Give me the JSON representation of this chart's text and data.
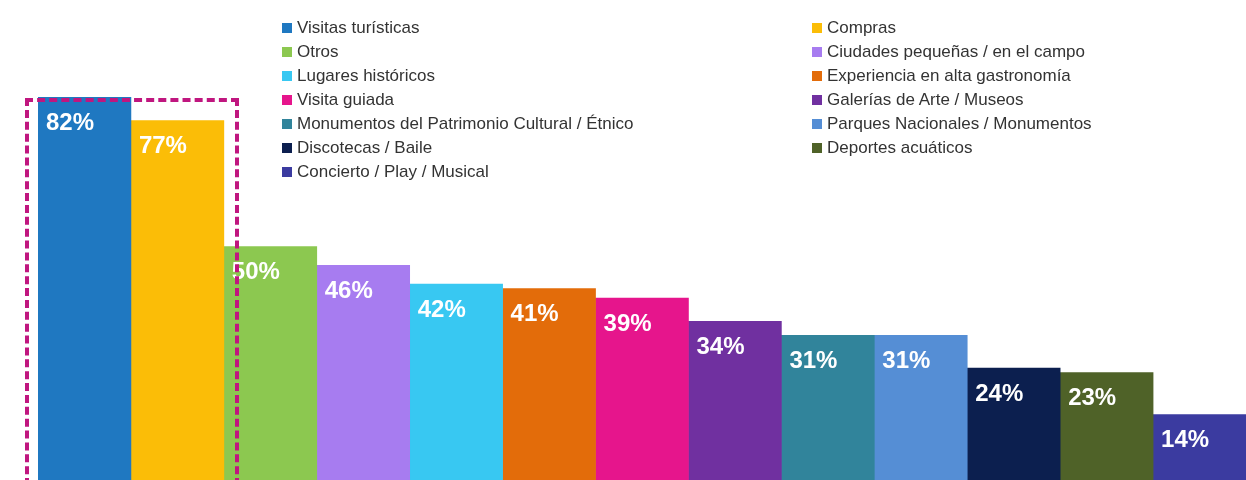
{
  "chart_data": {
    "type": "bar",
    "categories": [
      null,
      null,
      null,
      null,
      null,
      null,
      null,
      null,
      null,
      null,
      null,
      null,
      null
    ],
    "legend": "top",
    "stacked": true,
    "series": [
      {
        "name": "Visitas turísticas",
        "color": "#1f78c1",
        "values": [
          82,
          null,
          null,
          null,
          null,
          null,
          null,
          null,
          null,
          null,
          null,
          null,
          null
        ],
        "value_labels": [
          "82%",
          null,
          null,
          null,
          null,
          null,
          null,
          null,
          null,
          null,
          null,
          null,
          null
        ]
      },
      {
        "name": "Compras",
        "color": "#fbbd07",
        "values": [
          null,
          77,
          null,
          null,
          null,
          null,
          null,
          null,
          null,
          null,
          null,
          null,
          null
        ],
        "value_labels": [
          null,
          "77%",
          null,
          null,
          null,
          null,
          null,
          null,
          null,
          null,
          null,
          null,
          null
        ]
      },
      {
        "name": "Otros",
        "color": "#8cc850",
        "values": [
          null,
          null,
          50,
          null,
          null,
          null,
          null,
          null,
          null,
          null,
          null,
          null,
          null
        ],
        "value_labels": [
          null,
          null,
          "50%",
          null,
          null,
          null,
          null,
          null,
          null,
          null,
          null,
          null,
          null
        ]
      },
      {
        "name": "Ciudades pequeñas / en el campo",
        "color": "#a77cf0",
        "values": [
          null,
          null,
          null,
          46,
          null,
          null,
          null,
          null,
          null,
          null,
          null,
          null,
          null
        ],
        "value_labels": [
          null,
          null,
          null,
          "46%",
          null,
          null,
          null,
          null,
          null,
          null,
          null,
          null,
          null
        ]
      },
      {
        "name": "Lugares históricos",
        "color": "#38c8f2",
        "values": [
          null,
          null,
          null,
          null,
          42,
          null,
          null,
          null,
          null,
          null,
          null,
          null,
          null
        ],
        "value_labels": [
          null,
          null,
          null,
          null,
          "42%",
          null,
          null,
          null,
          null,
          null,
          null,
          null,
          null
        ]
      },
      {
        "name": "Experiencia en alta gastronomía",
        "color": "#e36c0a",
        "values": [
          null,
          null,
          null,
          null,
          null,
          41,
          null,
          null,
          null,
          null,
          null,
          null,
          null
        ],
        "value_labels": [
          null,
          null,
          null,
          null,
          null,
          "41%",
          null,
          null,
          null,
          null,
          null,
          null,
          null
        ]
      },
      {
        "name": "Visita guiada",
        "color": "#e6158c",
        "values": [
          null,
          null,
          null,
          null,
          null,
          null,
          39,
          null,
          null,
          null,
          null,
          null,
          null
        ],
        "value_labels": [
          null,
          null,
          null,
          null,
          null,
          null,
          "39%",
          null,
          null,
          null,
          null,
          null,
          null
        ]
      },
      {
        "name": "Galerías de Arte / Museos",
        "color": "#7030a0",
        "values": [
          null,
          null,
          null,
          null,
          null,
          null,
          null,
          34,
          null,
          null,
          null,
          null,
          null
        ],
        "value_labels": [
          null,
          null,
          null,
          null,
          null,
          null,
          null,
          "34%",
          null,
          null,
          null,
          null,
          null
        ]
      },
      {
        "name": "Monumentos del Patrimonio Cultural / Étnico",
        "color": "#31849b",
        "values": [
          null,
          null,
          null,
          null,
          null,
          null,
          null,
          null,
          31,
          null,
          null,
          null,
          null
        ],
        "value_labels": [
          null,
          null,
          null,
          null,
          null,
          null,
          null,
          null,
          "31%",
          null,
          null,
          null,
          null
        ]
      },
      {
        "name": "Parques Nacionales / Monumentos",
        "color": "#558ed5",
        "values": [
          null,
          null,
          null,
          null,
          null,
          null,
          null,
          null,
          null,
          31,
          null,
          null,
          null
        ],
        "value_labels": [
          null,
          null,
          null,
          null,
          null,
          null,
          null,
          null,
          null,
          "31%",
          null,
          null,
          null
        ]
      },
      {
        "name": "Discotecas / Baile",
        "color": "#0c1f4f",
        "values": [
          null,
          null,
          null,
          null,
          null,
          null,
          null,
          null,
          null,
          null,
          24,
          null,
          null
        ],
        "value_labels": [
          null,
          null,
          null,
          null,
          null,
          null,
          null,
          null,
          null,
          null,
          "24%",
          null,
          null
        ]
      },
      {
        "name": "Deportes acuáticos",
        "color": "#4f6228",
        "values": [
          null,
          null,
          null,
          null,
          null,
          null,
          null,
          null,
          null,
          null,
          null,
          23,
          null
        ],
        "value_labels": [
          null,
          null,
          null,
          null,
          null,
          null,
          null,
          null,
          null,
          null,
          null,
          "23%",
          null
        ]
      },
      {
        "name": "Concierto / Play / Musical",
        "color": "#3b3ba0",
        "values": [
          null,
          null,
          null,
          null,
          null,
          null,
          null,
          null,
          null,
          null,
          null,
          null,
          14
        ],
        "value_labels": [
          null,
          null,
          null,
          null,
          null,
          null,
          null,
          null,
          null,
          null,
          null,
          null,
          "14%"
        ]
      }
    ]
  }
}
